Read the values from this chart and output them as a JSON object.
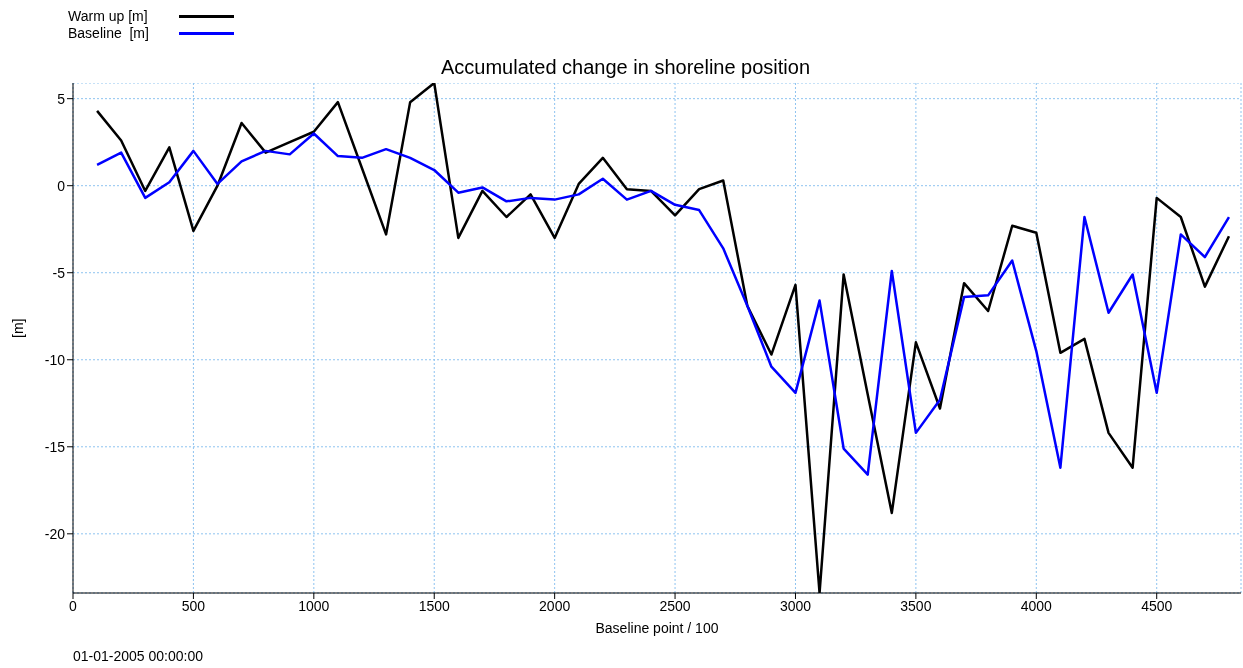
{
  "chart_data": {
    "type": "line",
    "title": "Accumulated change in shoreline position",
    "xlabel": "Baseline point / 100",
    "ylabel": "[m]",
    "x": [
      100,
      200,
      300,
      400,
      500,
      600,
      700,
      800,
      900,
      1000,
      1100,
      1200,
      1300,
      1400,
      1500,
      1600,
      1700,
      1800,
      1900,
      2000,
      2100,
      2200,
      2300,
      2400,
      2500,
      2600,
      2700,
      2800,
      2900,
      3000,
      3100,
      3200,
      3300,
      3400,
      3500,
      3600,
      3700,
      3800,
      3900,
      4000,
      4100,
      4200,
      4300,
      4400,
      4500,
      4600,
      4700,
      4800
    ],
    "series": [
      {
        "name": "Warm up [m]",
        "color": "#000000",
        "values": [
          4.3,
          2.6,
          -0.3,
          2.2,
          -2.6,
          0,
          3.6,
          1.9,
          2.5,
          3.1,
          4.8,
          1.0,
          -2.8,
          4.8,
          5.9,
          -3.0,
          -0.3,
          -1.8,
          -0.5,
          -3.0,
          0.1,
          1.6,
          -0.2,
          -0.3,
          -1.7,
          -0.2,
          0.3,
          -6.9,
          -9.7,
          -5.7,
          -23.4,
          -5.1,
          -12.0,
          -18.8,
          -9.0,
          -12.8,
          -5.6,
          -7.2,
          -2.3,
          -2.7,
          -9.6,
          -8.8,
          -14.2,
          -16.2,
          -0.7,
          -1.8,
          -5.8,
          -2.9
        ]
      },
      {
        "name": "Baseline  [m]",
        "color": "#0000ff",
        "values": [
          1.2,
          1.9,
          -0.7,
          0.2,
          2.0,
          0.1,
          1.4,
          2.0,
          1.8,
          3.0,
          1.7,
          1.6,
          2.1,
          1.6,
          0.9,
          -0.4,
          -0.1,
          -0.9,
          -0.7,
          -0.8,
          -0.5,
          0.4,
          -0.8,
          -0.3,
          -1.1,
          -1.4,
          -3.6,
          -6.9,
          -10.4,
          -11.9,
          -6.6,
          -15.1,
          -16.6,
          -4.9,
          -14.2,
          -12.3,
          -6.4,
          -6.3,
          -4.3,
          -9.5,
          -16.2,
          -1.8,
          -7.3,
          -5.1,
          -11.9,
          -2.8,
          -4.1,
          -1.8
        ]
      }
    ],
    "xlim": [
      0,
      4850
    ],
    "xticks": [
      0,
      500,
      1000,
      1500,
      2000,
      2500,
      3000,
      3500,
      4000,
      4500
    ],
    "ylim": [
      -23.4,
      5.9
    ],
    "yticks": [
      -20,
      -15,
      -10,
      -5,
      0,
      5
    ],
    "grid": true,
    "legend": "top left",
    "marker": "none",
    "line_style": "solid",
    "annotations": [
      "01-01-2005 00:00:00"
    ]
  }
}
